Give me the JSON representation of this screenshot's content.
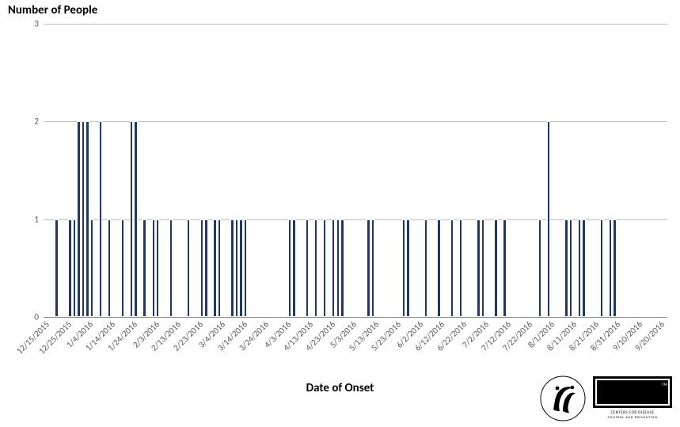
{
  "chart": {
    "type": "bar",
    "y_axis_title": "Number of People",
    "x_axis_title": "Date of Onset",
    "title_fontsize": 15,
    "axis_title_fontsize": 15,
    "tick_fontsize": 11,
    "background_color": "#ffffff",
    "grid_color": "#bfbfbf",
    "axis_line_color": "#808080",
    "bar_fill_color": "#1f3864",
    "bar_border_color": "#ffffff",
    "ylim": [
      0,
      3
    ],
    "yticks": [
      0,
      1,
      2,
      3
    ],
    "x_start_date": "12/15/2015",
    "x_end_date": "9/24/2016",
    "total_days": 284,
    "x_tick_labels": [
      {
        "label": "12/15/2015",
        "day": 0
      },
      {
        "label": "12/25/2015",
        "day": 10
      },
      {
        "label": "1/4/2016",
        "day": 20
      },
      {
        "label": "1/14/2016",
        "day": 30
      },
      {
        "label": "1/24/2016",
        "day": 40
      },
      {
        "label": "2/3/2016",
        "day": 50
      },
      {
        "label": "2/13/2016",
        "day": 60
      },
      {
        "label": "2/23/2016",
        "day": 70
      },
      {
        "label": "3/4/2016",
        "day": 80
      },
      {
        "label": "3/14/2016",
        "day": 90
      },
      {
        "label": "3/24/2016",
        "day": 100
      },
      {
        "label": "4/3/2016",
        "day": 110
      },
      {
        "label": "4/13/2016",
        "day": 120
      },
      {
        "label": "4/23/2016",
        "day": 130
      },
      {
        "label": "5/3/2016",
        "day": 140
      },
      {
        "label": "5/13/2016",
        "day": 150
      },
      {
        "label": "5/23/2016",
        "day": 160
      },
      {
        "label": "6/2/2016",
        "day": 170
      },
      {
        "label": "6/12/2016",
        "day": 180
      },
      {
        "label": "6/22/2016",
        "day": 190
      },
      {
        "label": "7/2/2016",
        "day": 200
      },
      {
        "label": "7/12/2016",
        "day": 210
      },
      {
        "label": "7/22/2016",
        "day": 220
      },
      {
        "label": "8/1/2016",
        "day": 230
      },
      {
        "label": "8/11/2016",
        "day": 240
      },
      {
        "label": "8/21/2016",
        "day": 250
      },
      {
        "label": "8/31/2016",
        "day": 260
      },
      {
        "label": "9/10/2016",
        "day": 270
      },
      {
        "label": "9/20/2016",
        "day": 280
      }
    ],
    "bars": [
      {
        "day": 6,
        "value": 1
      },
      {
        "day": 12,
        "value": 1
      },
      {
        "day": 14,
        "value": 1
      },
      {
        "day": 16,
        "value": 2
      },
      {
        "day": 18,
        "value": 2
      },
      {
        "day": 20,
        "value": 2
      },
      {
        "day": 22,
        "value": 1
      },
      {
        "day": 26,
        "value": 2
      },
      {
        "day": 30,
        "value": 1
      },
      {
        "day": 36,
        "value": 1
      },
      {
        "day": 40,
        "value": 2
      },
      {
        "day": 42,
        "value": 2
      },
      {
        "day": 46,
        "value": 1
      },
      {
        "day": 50,
        "value": 1
      },
      {
        "day": 52,
        "value": 1
      },
      {
        "day": 58,
        "value": 1
      },
      {
        "day": 66,
        "value": 1
      },
      {
        "day": 72,
        "value": 1
      },
      {
        "day": 74,
        "value": 1
      },
      {
        "day": 78,
        "value": 1
      },
      {
        "day": 80,
        "value": 1
      },
      {
        "day": 86,
        "value": 1
      },
      {
        "day": 88,
        "value": 1
      },
      {
        "day": 90,
        "value": 1
      },
      {
        "day": 92,
        "value": 1
      },
      {
        "day": 112,
        "value": 1
      },
      {
        "day": 114,
        "value": 1
      },
      {
        "day": 120,
        "value": 1
      },
      {
        "day": 124,
        "value": 1
      },
      {
        "day": 128,
        "value": 1
      },
      {
        "day": 132,
        "value": 1
      },
      {
        "day": 134,
        "value": 1
      },
      {
        "day": 136,
        "value": 1
      },
      {
        "day": 148,
        "value": 1
      },
      {
        "day": 150,
        "value": 1
      },
      {
        "day": 164,
        "value": 1
      },
      {
        "day": 166,
        "value": 1
      },
      {
        "day": 174,
        "value": 1
      },
      {
        "day": 180,
        "value": 1
      },
      {
        "day": 186,
        "value": 1
      },
      {
        "day": 190,
        "value": 1
      },
      {
        "day": 198,
        "value": 1
      },
      {
        "day": 200,
        "value": 1
      },
      {
        "day": 206,
        "value": 1
      },
      {
        "day": 210,
        "value": 1
      },
      {
        "day": 226,
        "value": 1
      },
      {
        "day": 230,
        "value": 2
      },
      {
        "day": 238,
        "value": 1
      },
      {
        "day": 240,
        "value": 1
      },
      {
        "day": 244,
        "value": 1
      },
      {
        "day": 246,
        "value": 1
      },
      {
        "day": 254,
        "value": 1
      },
      {
        "day": 258,
        "value": 1
      },
      {
        "day": 260,
        "value": 1
      }
    ]
  },
  "logos": {
    "hhs_label": "HHS seal",
    "cdc_main": "CDC",
    "cdc_sub1": "CENTERS FOR DISEASE",
    "cdc_sub2": "CONTROL AND PREVENTION",
    "tm": "TM"
  }
}
